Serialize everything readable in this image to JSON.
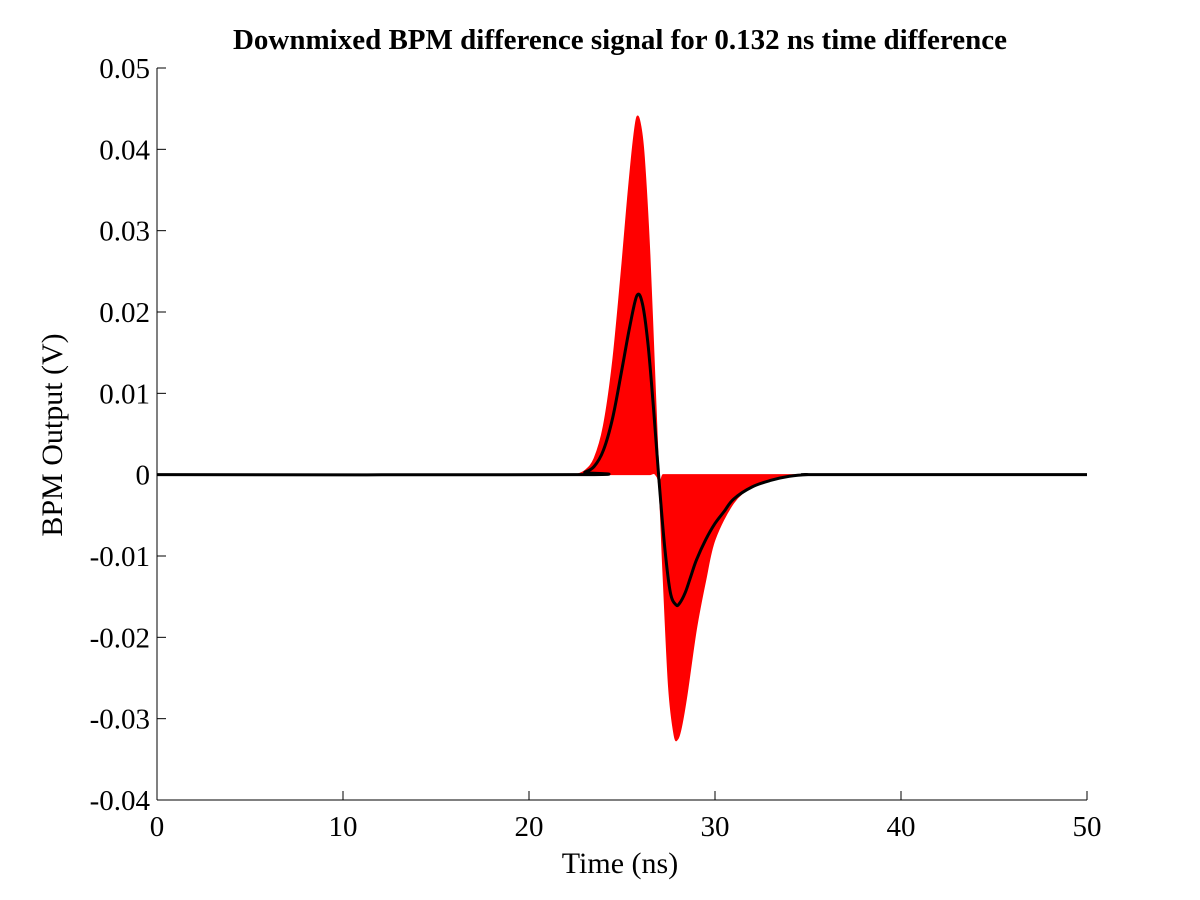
{
  "chart_data": {
    "type": "line",
    "title": "Downmixed BPM difference signal for 0.132 ns time difference",
    "xlabel": "Time (ns)",
    "ylabel": "BPM Output (V)",
    "xlim": [
      0,
      50
    ],
    "ylim": [
      -0.04,
      0.05
    ],
    "xticks": [
      0,
      10,
      20,
      30,
      40,
      50
    ],
    "xtick_labels": [
      "0",
      "10",
      "20",
      "30",
      "40",
      "50"
    ],
    "yticks": [
      0.05,
      0.04,
      0.03,
      0.02,
      0.01,
      0,
      -0.01,
      -0.02,
      -0.03,
      -0.04
    ],
    "ytick_labels": [
      "0.05",
      "0.04",
      "0.03",
      "0.02",
      "0.01",
      "0",
      "-0.01",
      "-0.02",
      "-0.03",
      "-0.04"
    ],
    "grid": false,
    "series": [
      {
        "color": "#ff0000",
        "style": "filled-envelope",
        "x": [
          22.5,
          23.0,
          23.5,
          24.0,
          24.5,
          25.0,
          25.3,
          25.6,
          25.8,
          26.0,
          26.2,
          26.5,
          26.8,
          27.0,
          27.2,
          27.5,
          27.8,
          28.0,
          28.2,
          28.5,
          29.0,
          29.5,
          30.0,
          31.0,
          32.0,
          33.0,
          34.0,
          35.0,
          36.0
        ],
        "upper": [
          0.0,
          0.0005,
          0.002,
          0.006,
          0.014,
          0.026,
          0.034,
          0.041,
          0.044,
          0.043,
          0.039,
          0.027,
          0.01,
          0.0,
          0.0,
          0.0,
          0.0,
          0.0,
          0.0,
          0.0,
          0.0,
          0.0,
          0.0,
          0.0,
          0.0,
          0.0,
          0.0,
          0.0,
          0.0
        ],
        "lower": [
          0.0,
          0.0,
          0.0,
          0.0,
          0.0,
          0.0,
          0.0,
          0.0,
          0.0,
          0.0,
          0.0,
          0.0,
          0.0,
          -0.002,
          -0.012,
          -0.026,
          -0.032,
          -0.0325,
          -0.031,
          -0.027,
          -0.019,
          -0.013,
          -0.008,
          -0.0035,
          -0.0015,
          -0.0005,
          -0.0002,
          0.0,
          0.0
        ]
      },
      {
        "color": "#000000",
        "style": "line",
        "x": [
          0,
          22.5,
          23.0,
          23.5,
          24.0,
          24.5,
          25.0,
          25.4,
          25.8,
          26.1,
          26.4,
          26.7,
          27.0,
          27.3,
          27.6,
          27.9,
          28.1,
          28.4,
          28.7,
          29.0,
          29.5,
          30.0,
          30.5,
          31.0,
          32.0,
          33.0,
          34.0,
          35.0,
          36.0,
          50
        ],
        "y": [
          0,
          0,
          0.0003,
          0.001,
          0.003,
          0.007,
          0.013,
          0.018,
          0.022,
          0.021,
          0.016,
          0.008,
          -0.001,
          -0.009,
          -0.0145,
          -0.016,
          -0.0158,
          -0.0145,
          -0.0125,
          -0.0105,
          -0.008,
          -0.006,
          -0.0045,
          -0.003,
          -0.0015,
          -0.0007,
          -0.0002,
          0,
          0,
          0
        ]
      }
    ]
  }
}
